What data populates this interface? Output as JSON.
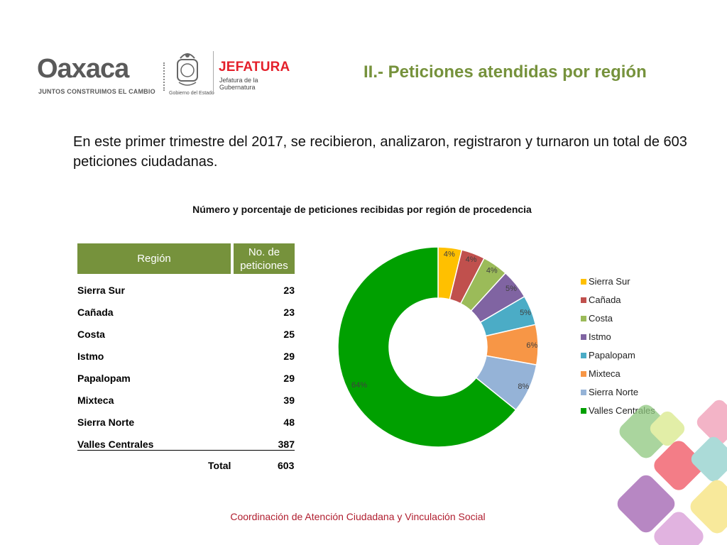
{
  "header": {
    "brand_word": "Oaxaca",
    "brand_tagline": "JUNTOS CONSTRUIMOS EL CAMBIO",
    "seal_caption": "Gobierno del Estado",
    "office_title": "JEFATURA",
    "office_subtitle": "Jefatura de la Gubernatura",
    "page_title": "II.- Peticiones atendidas por región"
  },
  "intro_text": "En este primer trimestre del 2017, se recibieron, analizaron, registraron y turnaron un total de 603 peticiones ciudadanas.",
  "table": {
    "col_region": "Región",
    "col_count": "No. de peticiones",
    "rows": [
      {
        "region": "Sierra Sur",
        "count": "23"
      },
      {
        "region": "Cañada",
        "count": "23"
      },
      {
        "region": "Costa",
        "count": "25"
      },
      {
        "region": "Istmo",
        "count": "29"
      },
      {
        "region": "Papalopam",
        "count": "29"
      },
      {
        "region": "Mixteca",
        "count": "39"
      },
      {
        "region": "Sierra Norte",
        "count": "48"
      },
      {
        "region": "Valles Centrales",
        "count": "387"
      }
    ],
    "total_label": "Total",
    "total_value": "603"
  },
  "chart_data": {
    "type": "pie",
    "subtype": "donut",
    "title": "Número y porcentaje de peticiones recibidas por región de procedencia",
    "categories": [
      "Sierra Sur",
      "Cañada",
      "Costa",
      "Istmo",
      "Papalopam",
      "Mixteca",
      "Sierra Norte",
      "Valles Centrales"
    ],
    "values": [
      23,
      23,
      25,
      29,
      29,
      39,
      48,
      387
    ],
    "labels": [
      "4%",
      "4%",
      "4%",
      "5%",
      "5%",
      "6%",
      "8%",
      "64%"
    ],
    "colors": [
      "#ffc000",
      "#c0504d",
      "#9bbb59",
      "#8064a2",
      "#4bacc6",
      "#f79646",
      "#95b3d7",
      "#00a000"
    ],
    "legend_position": "right"
  },
  "footer": "Coordinación de Atención Ciudadana y Vinculación Social"
}
